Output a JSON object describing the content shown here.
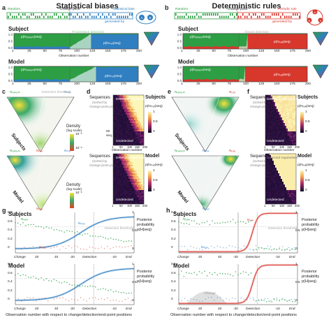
{
  "titles": {
    "left": "Statistical biases",
    "right": "Deterministic rules"
  },
  "panel_letters": {
    "a": "a",
    "b": "b",
    "c": "c",
    "d": "d",
    "e": "e",
    "f": "f",
    "g": "g",
    "h": "h"
  },
  "sequence_banner": {
    "random": "Random",
    "change_point": "Change point",
    "left_end": "Statistical bias",
    "right_end": "Periodic rule",
    "generated_by": "generated by"
  },
  "top_panels": {
    "subject": "Subject",
    "model": "Model",
    "p_random": "p(Nᵣₐₙₑₒₘ|seq)",
    "p_stat": "p(Nₛₜₐₜ|seq)",
    "p_rule": "p(Nᵣᵤₗₑ|seq)",
    "detection": "Progressive detection",
    "abrupt": "Abrupt detection",
    "xlabel": "Observation number",
    "xticks": [
      "1",
      "25",
      "50",
      "75",
      "100",
      "125",
      "150",
      "175",
      "200"
    ],
    "yticks": [
      "1.0",
      "0.5",
      "0.0"
    ]
  },
  "triangles": {
    "n_random": "Nᵣₐₙₑₒₘ",
    "n_rule": "Nᵣᵤₗₑ",
    "n_stat": "Nₛₜₐₜ",
    "density": "Density",
    "log_scale": "(log scale)",
    "detection_threshold": "Detection threshold",
    "subjects": "Subjects",
    "model": "Model",
    "scale_hi": "10⁻²",
    "scale_lo": "10⁻⁶"
  },
  "heatmaps": {
    "sequences": "Sequences",
    "sorted_by": "(sorted by",
    "change_point_position": "change-point position)",
    "detected_regularities": "Detected regularities",
    "undetected": "Undetected",
    "subjects": "Subjects",
    "model": "Model",
    "seq_ticks": [
      "50",
      "seq."
    ],
    "xlabel": "Observation number",
    "xticks": [
      "1",
      "50",
      "100",
      "150",
      "200"
    ],
    "cbar_label": "p(Nₛₜₐₜ|seq)",
    "cbar_label_rule": "p(Nᵣᵤₗₑ|seq)",
    "cbar_ticks": [
      "1",
      "0.5",
      "0"
    ]
  },
  "bottom_panels": {
    "subjects": "Subjects",
    "model": "Model",
    "posterior": "Posterior",
    "probability": "probability",
    "p_h": "p(H|seq)",
    "change": "Change",
    "detection": "Detection",
    "end": "End",
    "xticks_left": [
      "20",
      "40"
    ],
    "xticks_right": [
      "-20",
      "-10"
    ],
    "yticks": [
      "0.8",
      "0.6",
      "0.4",
      "0.2",
      "0"
    ],
    "yticks_right": [
      "1",
      "0.5",
      "0"
    ],
    "xlabel": "Observation number with respect to change/detection/end-point positions",
    "n_rand": "Nᵣₐₙₑ",
    "n_stat": "Nₛₜₐₜ",
    "n_rule": "Nᵣᵤₗₑ",
    "threshold": "Detection threshold",
    "change_note": "Change"
  },
  "colors": {
    "green": "#2e9e44",
    "blue": "#2f7fc1",
    "red": "#d8372c",
    "grey": "#b8b8b8",
    "light_green": "#bfe3c2"
  }
}
